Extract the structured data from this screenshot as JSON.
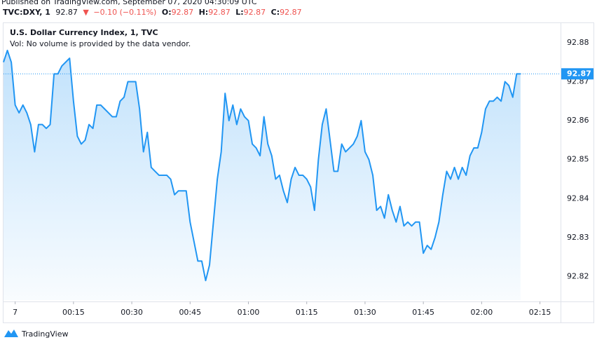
{
  "header": {
    "published": "Published on TradingView.com, September 07, 2020 04:30:09 UTC",
    "symbol": "TVC:DXY, 1",
    "price": "92.87",
    "change": "−0.10 (−0.11%)",
    "ohlc": [
      {
        "label": "O:",
        "value": "92.87"
      },
      {
        "label": "H:",
        "value": "92.87"
      },
      {
        "label": "L:",
        "value": "92.87"
      },
      {
        "label": "C:",
        "value": "92.87"
      }
    ]
  },
  "chart_data": {
    "type": "line",
    "title": "U.S. Dollar Currency Index, 1, TVC",
    "subtitle": "Vol: No volume is provided by the data vendor.",
    "x": [
      -3,
      -2,
      -1,
      0,
      1,
      2,
      3,
      4,
      5,
      6,
      7,
      8,
      9,
      10,
      11,
      12,
      13,
      14,
      15,
      16,
      17,
      18,
      19,
      20,
      21,
      22,
      23,
      24,
      25,
      26,
      27,
      28,
      29,
      30,
      31,
      32,
      33,
      34,
      35,
      36,
      37,
      38,
      39,
      40,
      41,
      42,
      43,
      44,
      45,
      46,
      47,
      48,
      49,
      50,
      51,
      52,
      53,
      54,
      55,
      56,
      57,
      58,
      59,
      60,
      61,
      62,
      63,
      64,
      65,
      66,
      67,
      68,
      69,
      70,
      71,
      72,
      73,
      74,
      75,
      76,
      77,
      78,
      79,
      80,
      81,
      82,
      83,
      84,
      85,
      86,
      87,
      88,
      89,
      90,
      91,
      92,
      93,
      94,
      95,
      96,
      97,
      98,
      99,
      100,
      101,
      102,
      103,
      104,
      105,
      106,
      107,
      108,
      109,
      110,
      111,
      112,
      113,
      114,
      115,
      116,
      117,
      118,
      119,
      120,
      121,
      122,
      123,
      124,
      125,
      126,
      127,
      128,
      129,
      130
    ],
    "series": [
      {
        "name": "DXY",
        "color": "#2196f3",
        "values": [
          92.875,
          92.878,
          92.875,
          92.864,
          92.862,
          92.864,
          92.862,
          92.859,
          92.852,
          92.859,
          92.859,
          92.858,
          92.859,
          92.872,
          92.872,
          92.874,
          92.875,
          92.876,
          92.865,
          92.856,
          92.854,
          92.855,
          92.859,
          92.858,
          92.864,
          92.864,
          92.863,
          92.862,
          92.861,
          92.861,
          92.865,
          92.866,
          92.87,
          92.87,
          92.87,
          92.863,
          92.852,
          92.857,
          92.848,
          92.847,
          92.846,
          92.846,
          92.846,
          92.845,
          92.841,
          92.842,
          92.842,
          92.842,
          92.834,
          92.829,
          92.824,
          92.824,
          92.819,
          92.823,
          92.834,
          92.845,
          92.852,
          92.867,
          92.86,
          92.864,
          92.859,
          92.863,
          92.861,
          92.86,
          92.854,
          92.853,
          92.851,
          92.861,
          92.854,
          92.851,
          92.845,
          92.846,
          92.842,
          92.839,
          92.845,
          92.848,
          92.846,
          92.846,
          92.845,
          92.843,
          92.837,
          92.85,
          92.859,
          92.863,
          92.855,
          92.847,
          92.847,
          92.854,
          92.852,
          92.853,
          92.854,
          92.856,
          92.86,
          92.852,
          92.85,
          92.846,
          92.837,
          92.838,
          92.835,
          92.841,
          92.837,
          92.834,
          92.838,
          92.833,
          92.834,
          92.833,
          92.834,
          92.834,
          92.826,
          92.828,
          92.827,
          92.83,
          92.834,
          92.841,
          92.847,
          92.845,
          92.848,
          92.845,
          92.848,
          92.846,
          92.851,
          92.853,
          92.853,
          92.857,
          92.863,
          92.865,
          92.865,
          92.866,
          92.865,
          92.87,
          92.869,
          92.866,
          92.872,
          92.872
        ]
      }
    ],
    "last_price": {
      "value": 92.872,
      "label": "92.87"
    },
    "xlim": [
      -3,
      140.3
    ],
    "xticks": [
      {
        "value": 0,
        "label": "7"
      },
      {
        "value": 15,
        "label": "00:15"
      },
      {
        "value": 30,
        "label": "00:30"
      },
      {
        "value": 45,
        "label": "00:45"
      },
      {
        "value": 60,
        "label": "01:00"
      },
      {
        "value": 75,
        "label": "01:15"
      },
      {
        "value": 90,
        "label": "01:30"
      },
      {
        "value": 105,
        "label": "01:45"
      },
      {
        "value": 120,
        "label": "02:00"
      },
      {
        "value": 135,
        "label": "02:15"
      }
    ],
    "ylim": [
      92.814,
      92.885
    ],
    "yticks": [
      92.82,
      92.83,
      92.84,
      92.85,
      92.86,
      92.87,
      92.88
    ],
    "grid": false
  },
  "footer": {
    "brand": "TradingView"
  }
}
